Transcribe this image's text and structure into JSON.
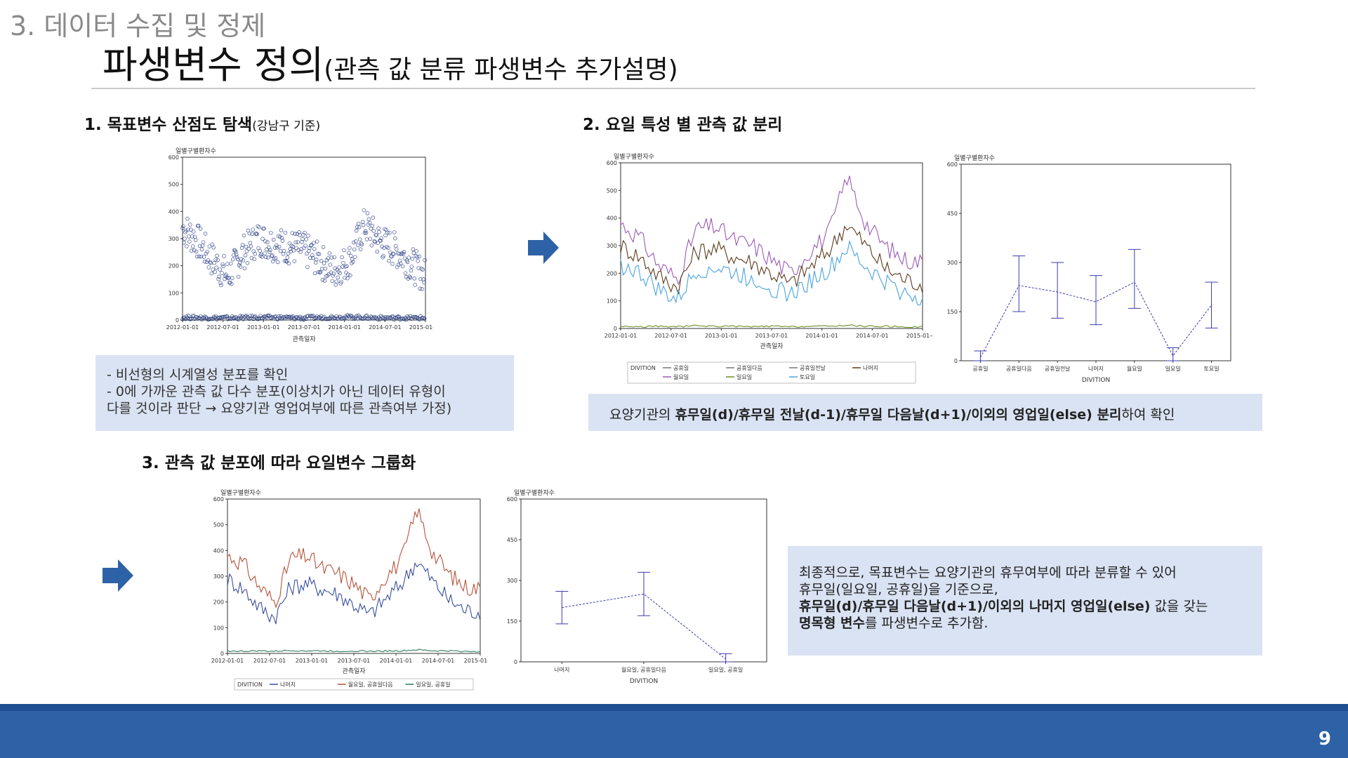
{
  "slide": {
    "section_title": "3. 데이터 수집 및 정제",
    "title_main": "파생변수 정의",
    "title_sub": "(관측 값 분류 파생변수 추가설명)",
    "page_number": "9",
    "colors": {
      "box_bg": "#dae3f3",
      "footer": "#2e62a6",
      "arrow": "#2e62a6"
    }
  },
  "step1": {
    "heading": "1. 목표변수 산점도 탐색",
    "heading_note": "(강남구 기준)",
    "notes": [
      "- 비선형의 시계열성 분포를 확인",
      "- 0에 가까운 관측 값 다수 분포(이상치가 아닌 데이터 유형이",
      "다를 것이라 판단 → 요양기관 영업여부에 따른 관측여부 가정)"
    ]
  },
  "step2": {
    "heading": "2. 요일 특성 별 관측 값 분리",
    "summary_normal_before": "요양기관의 ",
    "summary_bold": "휴무일(d)/휴무일 전날(d-1)/휴무일 다음날(d+1)/이외의 영업일(else) 분리",
    "summary_normal_after": "하여 확인"
  },
  "step3": {
    "heading": "3. 관측 값 분포에 따라 요일변수 그룹화",
    "conclusion_line1": "최종적으로, 목표변수는 요양기관의 휴무여부에 따라 분류할 수 있어",
    "conclusion_line2": "휴무일(일요일, 공휴일)을 기준으로,",
    "conclusion_line3_bold": "휴무일(d)/휴무일 다음날(d+1)/이외의 나머지 영업일(else)",
    "conclusion_line3_rest": " 값을 갖는",
    "conclusion_line4_bold": "명목형 변수",
    "conclusion_line4_rest": "를 파생변수로 추가함."
  },
  "chart_data": [
    {
      "id": "scatter-gangnam",
      "type": "scatter",
      "ylabel": "일별구별환자수",
      "xlabel": "관측일자",
      "ylim": [
        0,
        600
      ],
      "y_ticks": [
        "0",
        "100",
        "200",
        "300",
        "400",
        "500",
        "600"
      ],
      "x_ticks": [
        "2012-01-01",
        "2012-07-01",
        "2013-01-01",
        "2013-07-01",
        "2014-01-01",
        "2014-07-01",
        "2015-01-01"
      ],
      "series": [
        {
          "name": "",
          "x": [
            "2012-01",
            "2012-03",
            "2012-05",
            "2012-07",
            "2012-09",
            "2012-11",
            "2013-01",
            "2013-03",
            "2013-05",
            "2013-07",
            "2013-09",
            "2013-11",
            "2014-01",
            "2014-03",
            "2014-05",
            "2014-07",
            "2014-09"
          ],
          "values": [
            340,
            290,
            220,
            160,
            250,
            300,
            280,
            270,
            260,
            220,
            180,
            220,
            350,
            290,
            260,
            210,
            160
          ]
        },
        {
          "name": "",
          "x": [
            "2012-01",
            "2012-07",
            "2013-01",
            "2013-07",
            "2014-01",
            "2014-07",
            "2014-10"
          ],
          "values": [
            10,
            8,
            10,
            8,
            12,
            8,
            8
          ]
        }
      ]
    },
    {
      "id": "line-by-weekday",
      "type": "line",
      "ylabel": "일별구별환자수",
      "xlabel": "관측일자",
      "ylim": [
        0,
        600
      ],
      "y_ticks": [
        "0",
        "100",
        "200",
        "300",
        "400",
        "500",
        "600"
      ],
      "x_ticks": [
        "2012-01-01",
        "2012-07-01",
        "2013-01-01",
        "2013-07-01",
        "2014-01-01",
        "2014-07-01",
        "2015-01-01"
      ],
      "legend_title": "DIVITION",
      "legend": [
        "공휴일",
        "공휴일다음",
        "공휴일전날",
        "나머지",
        "월요일",
        "일요일",
        "토요일"
      ],
      "series": [
        {
          "name": "월요일",
          "color": "#9b59b6",
          "values": [
            380,
            330,
            230,
            180,
            360,
            370,
            320,
            300,
            250,
            200,
            280,
            340,
            550,
            380,
            300,
            250,
            240
          ]
        },
        {
          "name": "나머지",
          "color": "#5a3a1a",
          "values": [
            300,
            260,
            190,
            150,
            280,
            290,
            260,
            240,
            200,
            160,
            220,
            280,
            380,
            300,
            220,
            180,
            160
          ]
        },
        {
          "name": "토요일",
          "color": "#4aa3df",
          "values": [
            230,
            200,
            140,
            100,
            210,
            220,
            200,
            180,
            150,
            120,
            170,
            210,
            290,
            220,
            170,
            130,
            110
          ]
        },
        {
          "name": "일요일",
          "color": "#6b8e23",
          "values": [
            8,
            6,
            8,
            6,
            10,
            8,
            8,
            6,
            8,
            6,
            8,
            8,
            12,
            8,
            8,
            6,
            6
          ]
        }
      ]
    },
    {
      "id": "errorbar-by-weekday",
      "type": "line",
      "ylabel": "일별구별환자수",
      "xlabel": "DIVITION",
      "ylim": [
        0,
        600
      ],
      "y_ticks": [
        "0",
        "150",
        "300",
        "450",
        "600"
      ],
      "categories": [
        "공휴일",
        "공휴일다음",
        "공휴일전날",
        "나머지",
        "월요일",
        "일요일",
        "토요일"
      ],
      "mean": [
        10,
        230,
        210,
        180,
        240,
        15,
        170
      ],
      "upper": [
        30,
        320,
        300,
        260,
        340,
        40,
        240
      ],
      "lower": [
        0,
        150,
        130,
        110,
        160,
        0,
        100
      ]
    },
    {
      "id": "line-grouped",
      "type": "line",
      "ylabel": "일별구별환자수",
      "xlabel": "관측일자",
      "ylim": [
        0,
        600
      ],
      "y_ticks": [
        "0",
        "100",
        "200",
        "300",
        "400",
        "500",
        "600"
      ],
      "x_ticks": [
        "2012-01-01",
        "2012-07-01",
        "2013-01-01",
        "2013-07-01",
        "2014-01-01",
        "2014-07-01",
        "2015-01-01"
      ],
      "legend_title": "DIVITION",
      "legend": [
        "나머지",
        "월요일, 공휴일다음",
        "일요일, 공휴일"
      ],
      "series": [
        {
          "name": "월요일, 공휴일다음",
          "color": "#b5533c",
          "values": [
            380,
            350,
            260,
            200,
            370,
            380,
            330,
            310,
            270,
            210,
            300,
            360,
            560,
            390,
            310,
            260,
            250
          ]
        },
        {
          "name": "나머지",
          "color": "#3a4f9a",
          "values": [
            290,
            250,
            180,
            140,
            260,
            270,
            250,
            230,
            190,
            150,
            210,
            270,
            360,
            280,
            210,
            170,
            160
          ]
        },
        {
          "name": "일요일, 공휴일",
          "color": "#2e7d5b",
          "values": [
            10,
            8,
            10,
            8,
            12,
            10,
            10,
            8,
            10,
            8,
            10,
            10,
            14,
            10,
            10,
            8,
            8
          ]
        }
      ]
    },
    {
      "id": "errorbar-grouped",
      "type": "line",
      "ylabel": "일별구별환자수",
      "xlabel": "DIVITION",
      "ylim": [
        0,
        600
      ],
      "y_ticks": [
        "0",
        "150",
        "300",
        "450",
        "600"
      ],
      "categories": [
        "나머지",
        "월요일, 공휴일다음",
        "일요일, 공휴일"
      ],
      "mean": [
        200,
        250,
        10
      ],
      "upper": [
        260,
        330,
        30
      ],
      "lower": [
        140,
        170,
        0
      ]
    }
  ]
}
